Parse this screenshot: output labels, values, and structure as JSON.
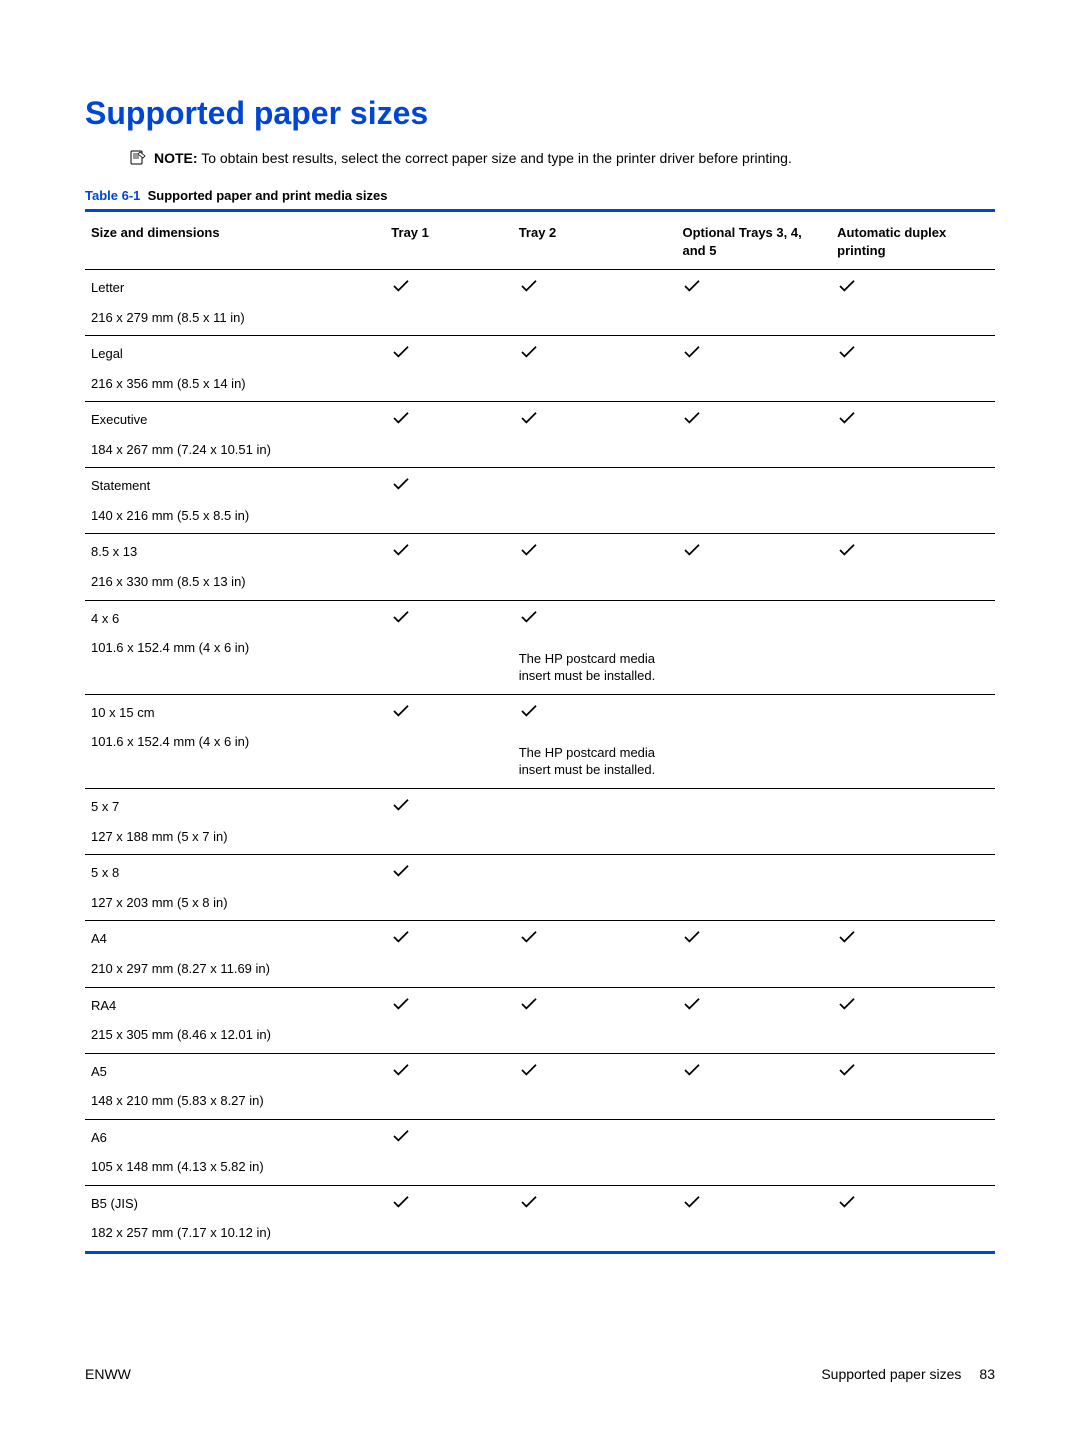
{
  "title": "Supported paper sizes",
  "note": {
    "label": "NOTE:",
    "text": "To obtain best results, select the correct paper size and type in the printer driver before printing."
  },
  "table": {
    "number": "Table 6-1",
    "name": "Supported paper and print media sizes",
    "columns": {
      "c0": "Size and dimensions",
      "c1": "Tray 1",
      "c2": "Tray 2",
      "c3": "Optional Trays 3, 4, and 5",
      "c4": "Automatic duplex printing"
    },
    "rows": [
      {
        "name": "Letter",
        "dim": "216 x 279 mm (8.5 x 11 in)",
        "t1": true,
        "t2": true,
        "t2note": "",
        "t3": true,
        "t4": true
      },
      {
        "name": "Legal",
        "dim": "216 x 356 mm (8.5 x 14 in)",
        "t1": true,
        "t2": true,
        "t2note": "",
        "t3": true,
        "t4": true
      },
      {
        "name": "Executive",
        "dim": "184 x 267 mm (7.24 x 10.51 in)",
        "t1": true,
        "t2": true,
        "t2note": "",
        "t3": true,
        "t4": true
      },
      {
        "name": "Statement",
        "dim": "140 x 216 mm (5.5 x 8.5 in)",
        "t1": true,
        "t2": false,
        "t2note": "",
        "t3": false,
        "t4": false
      },
      {
        "name": "8.5 x 13",
        "dim": "216 x 330 mm (8.5 x 13 in)",
        "t1": true,
        "t2": true,
        "t2note": "",
        "t3": true,
        "t4": true
      },
      {
        "name": "4 x 6",
        "dim": "101.6 x 152.4 mm (4 x 6 in)",
        "t1": true,
        "t2": true,
        "t2note": "The HP postcard media insert must be installed.",
        "t3": false,
        "t4": false
      },
      {
        "name": "10 x 15 cm",
        "dim": "101.6 x 152.4 mm (4 x 6 in)",
        "t1": true,
        "t2": true,
        "t2note": "The HP postcard media insert must be installed.",
        "t3": false,
        "t4": false
      },
      {
        "name": "5 x 7",
        "dim": "127 x 188 mm (5 x 7 in)",
        "t1": true,
        "t2": false,
        "t2note": "",
        "t3": false,
        "t4": false
      },
      {
        "name": "5 x 8",
        "dim": "127 x 203 mm (5 x 8 in)",
        "t1": true,
        "t2": false,
        "t2note": "",
        "t3": false,
        "t4": false
      },
      {
        "name": "A4",
        "dim": "210 x 297 mm (8.27 x 11.69 in)",
        "t1": true,
        "t2": true,
        "t2note": "",
        "t3": true,
        "t4": true
      },
      {
        "name": "RA4",
        "dim": "215 x 305 mm (8.46 x 12.01 in)",
        "t1": true,
        "t2": true,
        "t2note": "",
        "t3": true,
        "t4": true
      },
      {
        "name": "A5",
        "dim": "148 x 210 mm (5.83 x 8.27 in)",
        "t1": true,
        "t2": true,
        "t2note": "",
        "t3": true,
        "t4": true
      },
      {
        "name": "A6",
        "dim": "105 x 148 mm (4.13 x 5.82 in)",
        "t1": true,
        "t2": false,
        "t2note": "",
        "t3": false,
        "t4": false
      },
      {
        "name": "B5 (JIS)",
        "dim": "182 x 257 mm (7.17 x 10.12 in)",
        "t1": true,
        "t2": true,
        "t2note": "",
        "t3": true,
        "t4": true
      }
    ]
  },
  "footer": {
    "left": "ENWW",
    "rightText": "Supported paper sizes",
    "page": "83"
  },
  "colors": {
    "accent": "#0046d5",
    "text": "#000000",
    "bg": "#ffffff"
  }
}
